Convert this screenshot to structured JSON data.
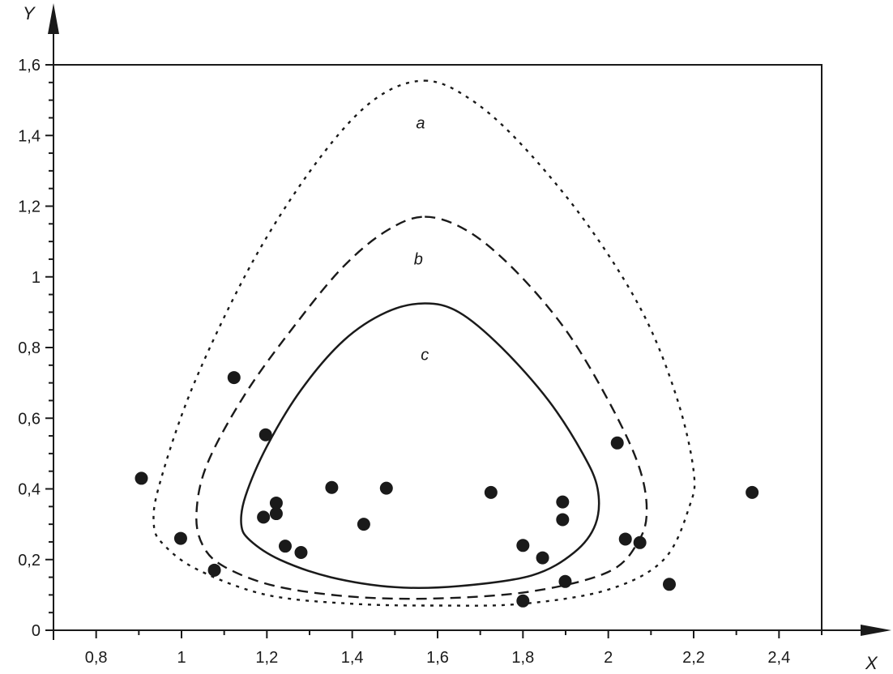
{
  "chart_data": {
    "type": "scatter",
    "xlabel": "X",
    "ylabel": "Y",
    "xlim": [
      0.7,
      2.5
    ],
    "ylim": [
      0,
      1.6
    ],
    "x_ticks": [
      {
        "value": 0.8,
        "label": "0,8"
      },
      {
        "value": 1.0,
        "label": "1"
      },
      {
        "value": 1.2,
        "label": "1,2"
      },
      {
        "value": 1.4,
        "label": "1,4"
      },
      {
        "value": 1.6,
        "label": "1,6"
      },
      {
        "value": 1.8,
        "label": "1,8"
      },
      {
        "value": 2.0,
        "label": "2"
      },
      {
        "value": 2.2,
        "label": "2,2"
      },
      {
        "value": 2.4,
        "label": "2,4"
      }
    ],
    "y_ticks": [
      {
        "value": 0.0,
        "label": "0"
      },
      {
        "value": 0.2,
        "label": "0,2"
      },
      {
        "value": 0.4,
        "label": "0,4"
      },
      {
        "value": 0.6,
        "label": "0,6"
      },
      {
        "value": 0.8,
        "label": "0,8"
      },
      {
        "value": 1.0,
        "label": "1"
      },
      {
        "value": 1.2,
        "label": "1,2"
      },
      {
        "value": 1.4,
        "label": "1,4"
      },
      {
        "value": 1.6,
        "label": "1,6"
      }
    ],
    "points": [
      {
        "x": 0.906,
        "y": 0.43
      },
      {
        "x": 0.998,
        "y": 0.26
      },
      {
        "x": 1.077,
        "y": 0.17
      },
      {
        "x": 1.123,
        "y": 0.715
      },
      {
        "x": 1.197,
        "y": 0.553
      },
      {
        "x": 1.192,
        "y": 0.32
      },
      {
        "x": 1.222,
        "y": 0.36
      },
      {
        "x": 1.222,
        "y": 0.33
      },
      {
        "x": 1.243,
        "y": 0.238
      },
      {
        "x": 1.28,
        "y": 0.22
      },
      {
        "x": 1.352,
        "y": 0.404
      },
      {
        "x": 1.427,
        "y": 0.3
      },
      {
        "x": 1.48,
        "y": 0.402
      },
      {
        "x": 1.725,
        "y": 0.39
      },
      {
        "x": 1.8,
        "y": 0.24
      },
      {
        "x": 1.8,
        "y": 0.083
      },
      {
        "x": 1.846,
        "y": 0.205
      },
      {
        "x": 1.893,
        "y": 0.363
      },
      {
        "x": 1.893,
        "y": 0.313
      },
      {
        "x": 1.899,
        "y": 0.138
      },
      {
        "x": 2.021,
        "y": 0.53
      },
      {
        "x": 2.04,
        "y": 0.258
      },
      {
        "x": 2.074,
        "y": 0.248
      },
      {
        "x": 2.143,
        "y": 0.13
      },
      {
        "x": 2.337,
        "y": 0.39
      }
    ],
    "regions": [
      {
        "label": "a",
        "line_style": "dotted",
        "label_pos": {
          "x": 1.56,
          "y": 1.42
        },
        "contour": [
          [
            1.57,
            1.555
          ],
          [
            1.68,
            1.5
          ],
          [
            1.8,
            1.37
          ],
          [
            1.95,
            1.15
          ],
          [
            2.08,
            0.9
          ],
          [
            2.16,
            0.66
          ],
          [
            2.2,
            0.45
          ],
          [
            2.19,
            0.35
          ],
          [
            2.13,
            0.2
          ],
          [
            2.0,
            0.115
          ],
          [
            1.8,
            0.075
          ],
          [
            1.6,
            0.07
          ],
          [
            1.4,
            0.075
          ],
          [
            1.2,
            0.1
          ],
          [
            1.04,
            0.17
          ],
          [
            0.96,
            0.24
          ],
          [
            0.935,
            0.3
          ],
          [
            0.95,
            0.42
          ],
          [
            1.03,
            0.7
          ],
          [
            1.17,
            1.05
          ],
          [
            1.32,
            1.33
          ],
          [
            1.45,
            1.5
          ]
        ]
      },
      {
        "label": "b",
        "line_style": "dashed",
        "label_pos": {
          "x": 1.555,
          "y": 1.035
        },
        "contour": [
          [
            1.57,
            1.17
          ],
          [
            1.67,
            1.13
          ],
          [
            1.78,
            1.02
          ],
          [
            1.9,
            0.85
          ],
          [
            2.0,
            0.65
          ],
          [
            2.07,
            0.47
          ],
          [
            2.09,
            0.34
          ],
          [
            2.07,
            0.25
          ],
          [
            2.0,
            0.165
          ],
          [
            1.82,
            0.11
          ],
          [
            1.6,
            0.09
          ],
          [
            1.4,
            0.095
          ],
          [
            1.22,
            0.125
          ],
          [
            1.1,
            0.18
          ],
          [
            1.05,
            0.24
          ],
          [
            1.035,
            0.33
          ],
          [
            1.06,
            0.47
          ],
          [
            1.15,
            0.67
          ],
          [
            1.27,
            0.87
          ],
          [
            1.38,
            1.03
          ],
          [
            1.48,
            1.13
          ]
        ]
      },
      {
        "label": "c",
        "line_style": "solid",
        "label_pos": {
          "x": 1.57,
          "y": 0.765
        },
        "contour": [
          [
            1.57,
            0.925
          ],
          [
            1.65,
            0.9
          ],
          [
            1.75,
            0.8
          ],
          [
            1.86,
            0.65
          ],
          [
            1.94,
            0.5
          ],
          [
            1.975,
            0.4
          ],
          [
            1.97,
            0.3
          ],
          [
            1.92,
            0.22
          ],
          [
            1.82,
            0.155
          ],
          [
            1.65,
            0.125
          ],
          [
            1.5,
            0.122
          ],
          [
            1.35,
            0.15
          ],
          [
            1.23,
            0.2
          ],
          [
            1.16,
            0.255
          ],
          [
            1.14,
            0.3
          ],
          [
            1.15,
            0.38
          ],
          [
            1.2,
            0.52
          ],
          [
            1.28,
            0.68
          ],
          [
            1.38,
            0.82
          ],
          [
            1.48,
            0.9
          ]
        ]
      }
    ]
  }
}
